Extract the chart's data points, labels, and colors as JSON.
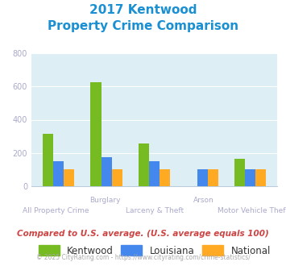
{
  "title_line1": "2017 Kentwood",
  "title_line2": "Property Crime Comparison",
  "title_color": "#1a8fd1",
  "categories": [
    "All Property Crime",
    "Burglary",
    "Larceny & Theft",
    "Arson",
    "Motor Vehicle Theft"
  ],
  "category_labels_top": [
    "",
    "Burglary",
    "",
    "Arson",
    ""
  ],
  "category_labels_bottom": [
    "All Property Crime",
    "",
    "Larceny & Theft",
    "",
    "Motor Vehicle Theft"
  ],
  "kentwood": [
    315,
    625,
    258,
    0,
    163
  ],
  "louisiana": [
    150,
    175,
    150,
    100,
    100
  ],
  "national": [
    100,
    100,
    100,
    100,
    100
  ],
  "bar_color_kentwood": "#77bb22",
  "bar_color_louisiana": "#4488ee",
  "bar_color_national": "#ffaa22",
  "ylim": [
    0,
    800
  ],
  "yticks": [
    0,
    200,
    400,
    600,
    800
  ],
  "plot_bg_color": "#ddeef5",
  "legend_labels": [
    "Kentwood",
    "Louisiana",
    "National"
  ],
  "footer_text": "Compared to U.S. average. (U.S. average equals 100)",
  "copyright_text": "© 2025 CityRating.com - https://www.cityrating.com/crime-statistics/",
  "xlabel_color": "#aaaacc",
  "tick_label_color": "#aaaacc",
  "footer_color": "#cc4444",
  "copyright_color": "#aaaaaa"
}
